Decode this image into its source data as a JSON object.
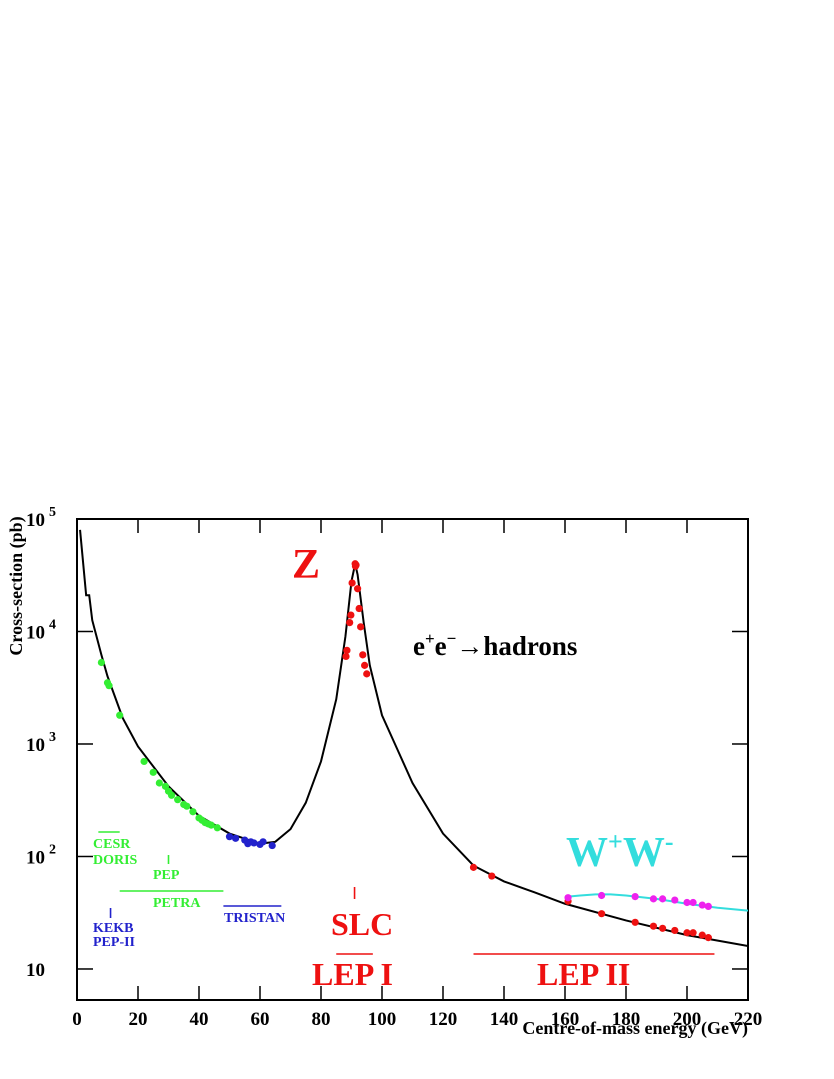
{
  "chart_data": {
    "type": "line",
    "log_y": true,
    "xlabel": "Centre-of-mass energy (GeV)",
    "ylabel": "Cross-section (pb)",
    "xlim": [
      0,
      220
    ],
    "xticks": [
      0,
      20,
      40,
      60,
      80,
      100,
      120,
      140,
      160,
      180,
      200,
      220
    ],
    "ylim": [
      5.3,
      100000
    ],
    "yticks": [
      {
        "value": 100000,
        "label": "10",
        "exponent": "5"
      },
      {
        "value": 10000,
        "label": "10",
        "exponent": "4"
      },
      {
        "value": 1000,
        "label": "10",
        "exponent": "3"
      },
      {
        "value": 100,
        "label": "10",
        "exponent": "2"
      },
      10
    ],
    "series": [
      {
        "type": "line",
        "color": "#000000",
        "x": [
          1,
          3,
          4,
          5,
          8,
          10,
          15,
          20,
          30,
          40,
          50,
          60,
          65,
          70,
          75,
          80,
          85,
          88,
          90,
          91.2,
          92,
          94,
          96,
          100,
          105,
          110,
          120,
          130,
          140,
          150,
          160,
          180,
          200,
          220
        ],
        "values": [
          80000,
          21000,
          21000,
          12600,
          6200,
          4000,
          1700,
          950,
          420,
          230,
          160,
          130,
          135,
          175,
          300,
          700,
          2500,
          9000,
          28000,
          40000,
          32000,
          12000,
          5000,
          1800,
          900,
          450,
          160,
          83,
          60,
          48,
          38,
          27,
          20,
          16
        ]
      },
      {
        "type": "line",
        "color": "#33dddd",
        "x": [
          161,
          165,
          170,
          175,
          180,
          190,
          200,
          210,
          220
        ],
        "values": [
          44,
          45,
          46,
          46,
          45,
          42,
          38,
          35,
          33
        ]
      },
      {
        "type": "scatter",
        "color": "#33ee33",
        "x": [
          8,
          10,
          10.5,
          14,
          22,
          25,
          27,
          29,
          30,
          31,
          33,
          35,
          36,
          38,
          40,
          41,
          42,
          43,
          44,
          46
        ],
        "values": [
          5300,
          3500,
          3300,
          1800,
          700,
          560,
          450,
          420,
          380,
          350,
          320,
          290,
          280,
          250,
          220,
          210,
          200,
          195,
          190,
          180
        ]
      },
      {
        "type": "scatter",
        "color": "#2222cc",
        "x": [
          50,
          52,
          55,
          56,
          57,
          58,
          60,
          61,
          64
        ],
        "values": [
          150,
          145,
          140,
          130,
          135,
          132,
          128,
          135,
          125
        ]
      },
      {
        "type": "scatter",
        "color": "#ee1111",
        "x": [
          88.2,
          88.5,
          89.4,
          89.8,
          90.2,
          91.2,
          91.3,
          91.5,
          92.0,
          92.5,
          93,
          93.7,
          94.3,
          95,
          130,
          136,
          161,
          172,
          183,
          189,
          192,
          196,
          200,
          202,
          205,
          207
        ],
        "values": [
          6000,
          6800,
          12000,
          14000,
          27000,
          40000,
          38000,
          39000,
          24000,
          16000,
          11000,
          6200,
          5000,
          4200,
          80,
          67,
          40,
          31,
          26,
          24,
          23,
          22,
          21,
          21,
          20,
          19
        ]
      },
      {
        "type": "scatter",
        "color": "#ee22ee",
        "x": [
          161,
          172,
          183,
          189,
          192,
          196,
          200,
          202,
          205,
          207
        ],
        "values": [
          43,
          45,
          44,
          42,
          42,
          41,
          39,
          39,
          37,
          36
        ]
      }
    ],
    "accelerators": [
      {
        "name": "CESR",
        "color": "#33ee33",
        "range": [
          7,
          14
        ]
      },
      {
        "name": "DORIS",
        "color": "#33ee33"
      },
      {
        "name": "PEP",
        "color": "#33ee33",
        "range": [
          30,
          30
        ]
      },
      {
        "name": "PETRA",
        "color": "#33ee33",
        "range": [
          14,
          48
        ]
      },
      {
        "name": "KEKB",
        "color": "#2222cc",
        "range": [
          11,
          11
        ]
      },
      {
        "name": "PEP-II",
        "color": "#2222cc"
      },
      {
        "name": "TRISTAN",
        "color": "#2222cc",
        "range": [
          48,
          67
        ]
      },
      {
        "name": "SLC",
        "color": "#ee1111",
        "range": [
          91,
          91
        ]
      },
      {
        "name": "LEP I",
        "color": "#ee1111",
        "range": [
          85,
          97
        ]
      },
      {
        "name": "LEP II",
        "color": "#ee1111",
        "range": [
          130,
          209
        ]
      }
    ],
    "peak_label": "Z",
    "ww_label": [
      "W",
      "+",
      "W",
      "-"
    ],
    "process_label": [
      "e",
      "+",
      "e",
      "−",
      "→hadrons"
    ]
  }
}
